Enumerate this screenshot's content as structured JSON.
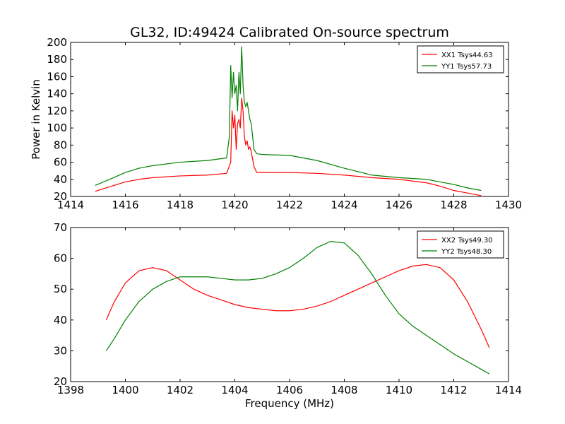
{
  "chart_data": [
    {
      "type": "line",
      "title": "GL32, ID:49424 Calibrated On-source spectrum",
      "xlabel": "",
      "ylabel": "Power in Kelvin",
      "xlim": [
        1414,
        1430
      ],
      "ylim": [
        20,
        200
      ],
      "xticks": [
        "1414",
        "1416",
        "1418",
        "1420",
        "1422",
        "1424",
        "1426",
        "1428",
        "1430"
      ],
      "yticks": [
        "20",
        "40",
        "60",
        "80",
        "100",
        "120",
        "140",
        "160",
        "180",
        "200"
      ],
      "legend_position": "top-right",
      "series": [
        {
          "name": "XX1 Tsys44.63",
          "color": "#ff0000",
          "x": [
            1414.9,
            1415.5,
            1416.0,
            1416.5,
            1417.0,
            1418.0,
            1419.0,
            1419.7,
            1419.85,
            1419.9,
            1419.95,
            1420.0,
            1420.05,
            1420.1,
            1420.15,
            1420.2,
            1420.25,
            1420.3,
            1420.35,
            1420.4,
            1420.45,
            1420.5,
            1420.55,
            1420.6,
            1420.7,
            1420.8,
            1421.0,
            1422.0,
            1423.0,
            1424.0,
            1425.0,
            1426.0,
            1427.0,
            1427.5,
            1428.0,
            1428.5,
            1429.0
          ],
          "y": [
            26,
            32,
            37,
            40,
            42,
            44,
            45,
            47,
            60,
            120,
            100,
            115,
            75,
            105,
            110,
            100,
            135,
            120,
            90,
            80,
            85,
            75,
            78,
            72,
            55,
            48,
            48,
            48,
            47,
            45,
            42,
            40,
            36,
            32,
            27,
            24,
            21
          ]
        },
        {
          "name": "YY1 Tsys57.73",
          "color": "#008000",
          "x": [
            1414.9,
            1415.5,
            1416.0,
            1416.5,
            1417.0,
            1418.0,
            1419.0,
            1419.7,
            1419.8,
            1419.85,
            1419.9,
            1419.95,
            1420.0,
            1420.05,
            1420.1,
            1420.15,
            1420.2,
            1420.25,
            1420.3,
            1420.35,
            1420.4,
            1420.45,
            1420.5,
            1420.55,
            1420.6,
            1420.7,
            1420.8,
            1421.0,
            1422.0,
            1423.0,
            1424.0,
            1425.0,
            1426.0,
            1427.0,
            1427.5,
            1428.0,
            1428.5,
            1429.0
          ],
          "y": [
            33,
            41,
            48,
            53,
            56,
            60,
            62,
            65,
            90,
            173,
            135,
            165,
            140,
            150,
            120,
            165,
            140,
            195,
            150,
            130,
            125,
            130,
            120,
            110,
            105,
            75,
            70,
            69,
            68,
            62,
            53,
            45,
            42,
            40,
            37,
            34,
            30,
            27
          ]
        }
      ]
    },
    {
      "type": "line",
      "title": "",
      "xlabel": "Frequency (MHz)",
      "ylabel": "",
      "xlim": [
        1398,
        1414
      ],
      "ylim": [
        20,
        70
      ],
      "xticks": [
        "1398",
        "1400",
        "1402",
        "1404",
        "1406",
        "1408",
        "1410",
        "1412",
        "1414"
      ],
      "yticks": [
        "20",
        "30",
        "40",
        "50",
        "60",
        "70"
      ],
      "legend_position": "top-right",
      "series": [
        {
          "name": "XX2 Tsys49.30",
          "color": "#ff0000",
          "x": [
            1399.3,
            1399.6,
            1400.0,
            1400.5,
            1401.0,
            1401.5,
            1402.0,
            1402.5,
            1403.0,
            1403.5,
            1404.0,
            1404.5,
            1405.0,
            1405.5,
            1406.0,
            1406.5,
            1407.0,
            1407.5,
            1408.0,
            1408.5,
            1409.0,
            1409.5,
            1410.0,
            1410.5,
            1411.0,
            1411.5,
            1412.0,
            1412.5,
            1413.0,
            1413.3
          ],
          "y": [
            40,
            46,
            52,
            56,
            57,
            56,
            53,
            50,
            48,
            46.5,
            45,
            44,
            43.5,
            43,
            43,
            43.5,
            44.5,
            46,
            48,
            50,
            52,
            54,
            56,
            57.5,
            58,
            57,
            53,
            46,
            37,
            31
          ]
        },
        {
          "name": "YY2 Tsys48.30",
          "color": "#008000",
          "x": [
            1399.3,
            1399.6,
            1400.0,
            1400.5,
            1401.0,
            1401.5,
            1402.0,
            1402.5,
            1403.0,
            1403.5,
            1404.0,
            1404.5,
            1405.0,
            1405.5,
            1406.0,
            1406.5,
            1407.0,
            1407.5,
            1408.0,
            1408.5,
            1409.0,
            1409.5,
            1410.0,
            1410.5,
            1411.0,
            1411.5,
            1412.0,
            1412.5,
            1413.0,
            1413.3
          ],
          "y": [
            30,
            34,
            40,
            46,
            50,
            52.5,
            54,
            54,
            54,
            53.5,
            53,
            53,
            53.5,
            55,
            57,
            60,
            63.5,
            65.5,
            65,
            61,
            55,
            48,
            42,
            38,
            35,
            32,
            29,
            26.5,
            24,
            22.5
          ]
        }
      ]
    }
  ]
}
